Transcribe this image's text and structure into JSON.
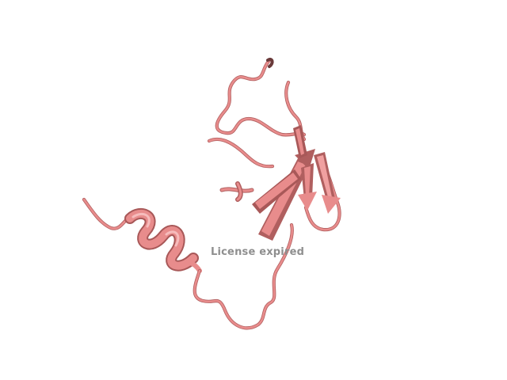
{
  "viewer": {
    "watermark_text": "License expired",
    "background_color": "#ffffff",
    "ribbon_color": "#e88c8c",
    "ribbon_shadow_color": "#b05f5f",
    "ribbon_highlight_color": "#f6bcbc",
    "watermark_color": "#8f8f8f"
  }
}
